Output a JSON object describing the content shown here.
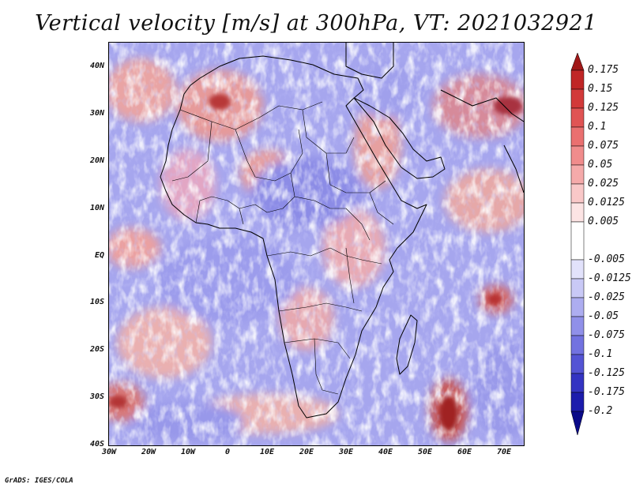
{
  "title": "Vertical velocity [m/s] at 300hPa, VT: 2021032921",
  "map": {
    "lat_range": [
      -40,
      45
    ],
    "lon_range": [
      -30,
      75
    ],
    "lat_labels": [
      "40N",
      "30N",
      "20N",
      "10N",
      "EQ",
      "10S",
      "20S",
      "30S",
      "40S"
    ],
    "lat_values": [
      40,
      30,
      20,
      10,
      0,
      -10,
      -20,
      -30,
      -40
    ],
    "lon_labels": [
      "30W",
      "20W",
      "10W",
      "0",
      "10E",
      "20E",
      "30E",
      "40E",
      "50E",
      "60E",
      "70E"
    ],
    "lon_values": [
      -30,
      -20,
      -10,
      0,
      10,
      20,
      30,
      40,
      50,
      60,
      70
    ]
  },
  "colorbar": {
    "labels": [
      "0.175",
      "0.15",
      "0.125",
      "0.1",
      "0.075",
      "0.05",
      "0.025",
      "0.0125",
      "0.005",
      "-0.005",
      "-0.0125",
      "-0.025",
      "-0.05",
      "-0.075",
      "-0.1",
      "-0.125",
      "-0.175",
      "-0.2"
    ],
    "colors": [
      "#a01818",
      "#c02626",
      "#d23a3a",
      "#e05454",
      "#ea7070",
      "#f08c8c",
      "#f5aaaa",
      "#f9c8c8",
      "#fce4e4",
      "#ffffff",
      "#e2e2fb",
      "#c9c9f6",
      "#adadf0",
      "#9090e9",
      "#7272e0",
      "#5454d4",
      "#3434c2",
      "#1c1cac",
      "#0a0a88"
    ]
  },
  "footer": "GrADS: IGES/COLA"
}
